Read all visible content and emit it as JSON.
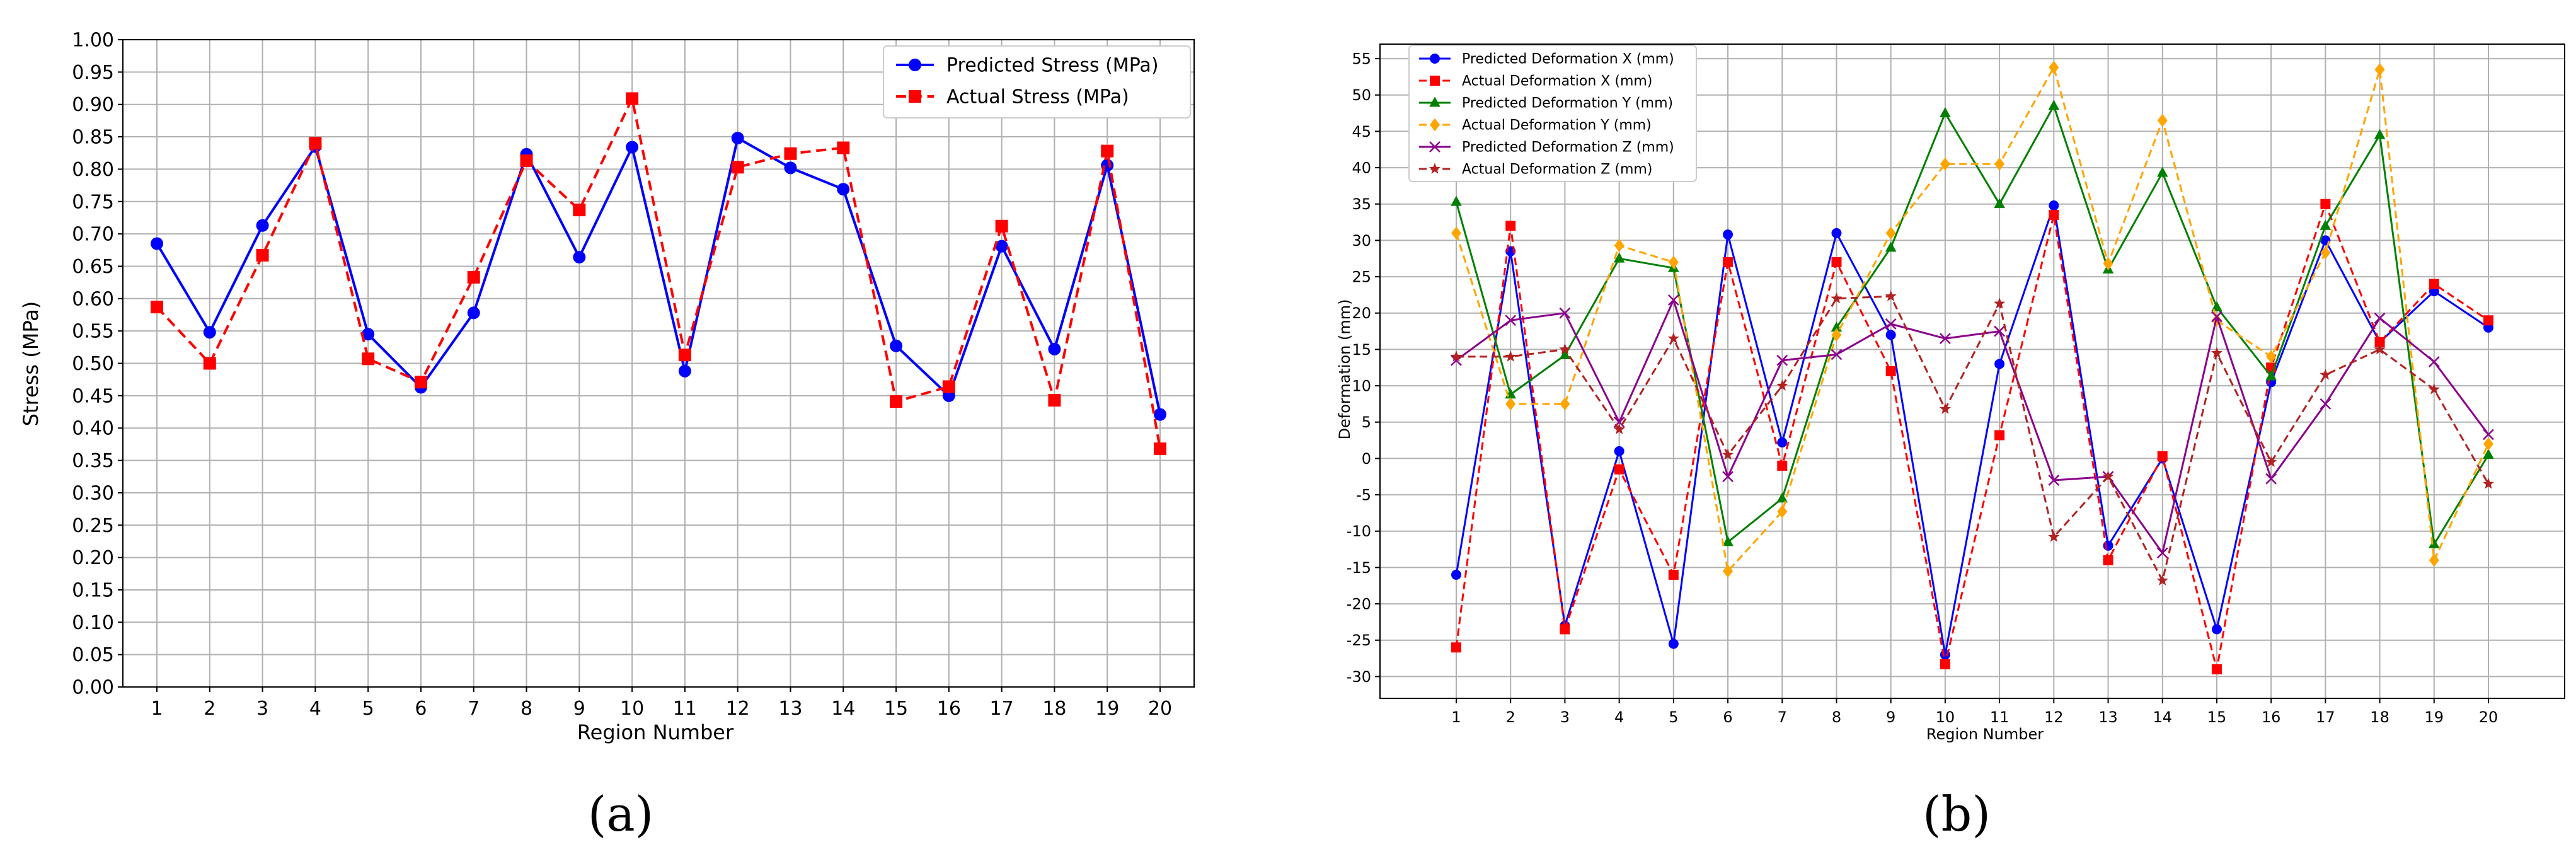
{
  "chart_data": [
    {
      "panel": "(a)",
      "type": "line",
      "title": "",
      "xlabel": "Region Number",
      "ylabel": "Stress (MPa)",
      "categories": [
        "1",
        "2",
        "3",
        "4",
        "5",
        "6",
        "7",
        "8",
        "9",
        "10",
        "11",
        "12",
        "13",
        "14",
        "15",
        "16",
        "17",
        "18",
        "19",
        "20"
      ],
      "ylim": [
        0,
        1.0
      ],
      "yticks": [
        "0.00",
        "0.05",
        "0.10",
        "0.15",
        "0.20",
        "0.25",
        "0.30",
        "0.35",
        "0.40",
        "0.45",
        "0.50",
        "0.55",
        "0.60",
        "0.65",
        "0.70",
        "0.75",
        "0.80",
        "0.85",
        "0.90",
        "0.95",
        "1.00"
      ],
      "legend_position": "top-right",
      "grid": true,
      "series": [
        {
          "name": "Predicted Stress (MPa)",
          "color": "#0000ff",
          "dash": "solid",
          "marker": "circle",
          "values": [
            0.685,
            0.548,
            0.713,
            0.835,
            0.545,
            0.463,
            0.578,
            0.823,
            0.664,
            0.834,
            0.488,
            0.848,
            0.802,
            0.769,
            0.527,
            0.45,
            0.681,
            0.522,
            0.806,
            0.421
          ]
        },
        {
          "name": "Actual Stress (MPa)",
          "color": "#ff0000",
          "dash": "dashed",
          "marker": "square",
          "values": [
            0.587,
            0.5,
            0.667,
            0.84,
            0.507,
            0.471,
            0.633,
            0.813,
            0.737,
            0.909,
            0.513,
            0.803,
            0.824,
            0.833,
            0.441,
            0.464,
            0.712,
            0.443,
            0.828,
            0.368
          ]
        }
      ]
    },
    {
      "panel": "(b)",
      "type": "line",
      "title": "",
      "xlabel": "Region Number",
      "ylabel": "Deformation (mm)",
      "categories": [
        "1",
        "2",
        "3",
        "4",
        "5",
        "6",
        "7",
        "8",
        "9",
        "10",
        "11",
        "12",
        "13",
        "14",
        "15",
        "16",
        "17",
        "18",
        "19",
        "20"
      ],
      "ylim": [
        -33,
        57
      ],
      "yticks": [
        "-30",
        "-25",
        "-20",
        "-15",
        "-10",
        "-5",
        "0",
        "5",
        "10",
        "15",
        "20",
        "25",
        "30",
        "35",
        "40",
        "45",
        "50",
        "55"
      ],
      "legend_position": "top-left",
      "grid": true,
      "series": [
        {
          "name": "Predicted Deformation X (mm)",
          "color": "#0000ff",
          "dash": "solid",
          "marker": "circle",
          "values": [
            -16,
            28.5,
            -23,
            1,
            -25.5,
            30.8,
            2.2,
            31,
            17,
            -27,
            13,
            34.8,
            -12,
            0,
            -23.5,
            10.5,
            30,
            16,
            23,
            18
          ]
        },
        {
          "name": "Actual Deformation X (mm)",
          "color": "#ff0000",
          "dash": "dashed",
          "marker": "square",
          "values": [
            -26,
            32,
            -23.5,
            -1.5,
            -16,
            27,
            -1,
            27,
            12,
            -28.3,
            3.2,
            33.5,
            -14,
            0.3,
            -29,
            12.5,
            35,
            16,
            24,
            19
          ]
        },
        {
          "name": "Predicted Deformation Y (mm)",
          "color": "#008000",
          "dash": "solid",
          "marker": "triangle",
          "values": [
            35.3,
            8.8,
            14.2,
            27.5,
            26.2,
            -11.5,
            -5.5,
            18,
            29,
            47.5,
            35,
            48.5,
            26,
            39.3,
            20.8,
            11.3,
            32,
            44.5,
            -11.8,
            0.5
          ]
        },
        {
          "name": "Actual Deformation Y (mm)",
          "color": "#ffa500",
          "dash": "dashed",
          "marker": "diamond",
          "values": [
            31,
            7.5,
            7.5,
            29.3,
            27,
            -15.5,
            -7.3,
            17,
            31,
            40.5,
            40.5,
            53.8,
            26.8,
            46.5,
            19,
            14,
            28.3,
            53.5,
            -14,
            2
          ]
        },
        {
          "name": "Predicted Deformation Z (mm)",
          "color": "#8b008b",
          "dash": "solid",
          "marker": "x",
          "values": [
            13.5,
            19,
            20,
            5,
            21.8,
            -2.5,
            13.5,
            14.3,
            18.5,
            16.5,
            17.5,
            -3,
            -2.5,
            -13,
            19.5,
            -2.8,
            7.5,
            19.3,
            13.3,
            3.3
          ]
        },
        {
          "name": "Actual Deformation Z (mm)",
          "color": "#b22222",
          "dash": "dashed",
          "marker": "star",
          "values": [
            14,
            14,
            15,
            4,
            16.5,
            0.5,
            10,
            22,
            22.3,
            6.8,
            21.3,
            -10.8,
            -2.5,
            -16.8,
            14.5,
            -0.5,
            11.5,
            15,
            9.5,
            -3.5
          ]
        }
      ]
    }
  ]
}
